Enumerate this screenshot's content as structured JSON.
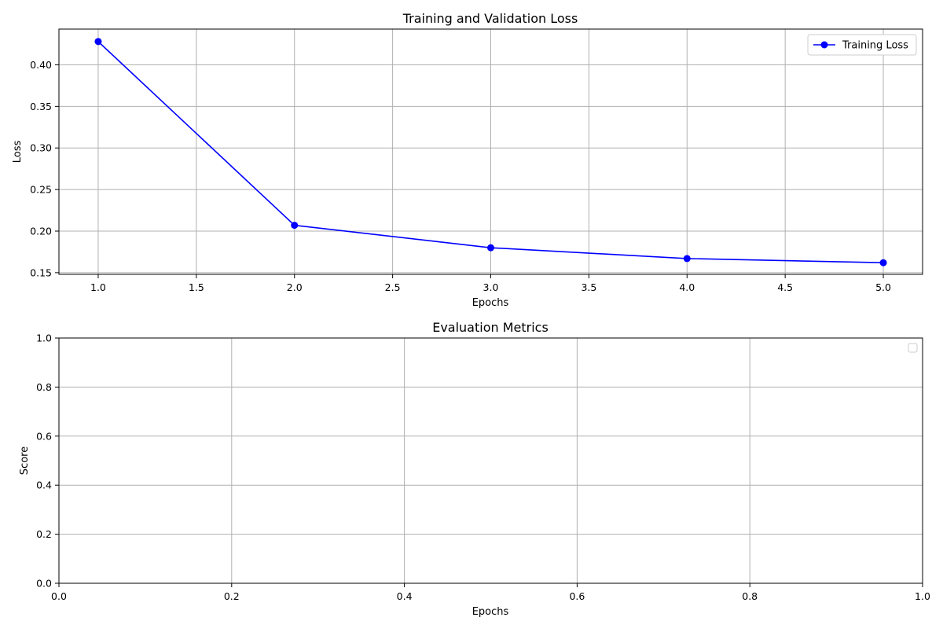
{
  "chart_data": [
    {
      "type": "line",
      "title": "Training and Validation Loss",
      "xlabel": "Epochs",
      "ylabel": "Loss",
      "xlim": [
        0.8,
        5.2
      ],
      "ylim": [
        0.148,
        0.443
      ],
      "xticks": [
        1.0,
        1.5,
        2.0,
        2.5,
        3.0,
        3.5,
        4.0,
        4.5,
        5.0
      ],
      "xtick_labels": [
        "1.0",
        "1.5",
        "2.0",
        "2.5",
        "3.0",
        "3.5",
        "4.0",
        "4.5",
        "5.0"
      ],
      "yticks": [
        0.15,
        0.2,
        0.25,
        0.3,
        0.35,
        0.4
      ],
      "ytick_labels": [
        "0.15",
        "0.20",
        "0.25",
        "0.30",
        "0.35",
        "0.40"
      ],
      "grid": true,
      "legend": "top-right",
      "series": [
        {
          "name": "Training Loss",
          "color": "#0000ff",
          "marker": "circle",
          "x": [
            1,
            2,
            3,
            4,
            5
          ],
          "y": [
            0.428,
            0.207,
            0.18,
            0.167,
            0.162
          ]
        }
      ]
    },
    {
      "type": "line",
      "title": "Evaluation Metrics",
      "xlabel": "Epochs",
      "ylabel": "Score",
      "xlim": [
        0.0,
        1.0
      ],
      "ylim": [
        0.0,
        1.0
      ],
      "xticks": [
        0.0,
        0.2,
        0.4,
        0.6,
        0.8,
        1.0
      ],
      "xtick_labels": [
        "0.0",
        "0.2",
        "0.4",
        "0.6",
        "0.8",
        "1.0"
      ],
      "yticks": [
        0.0,
        0.2,
        0.4,
        0.6,
        0.8,
        1.0
      ],
      "yticks_labels_note": "",
      "ytick_labels": [
        "0.0",
        "0.2",
        "0.4",
        "0.6",
        "0.8",
        "1.0"
      ],
      "grid": true,
      "legend": "top-right",
      "series": []
    }
  ]
}
